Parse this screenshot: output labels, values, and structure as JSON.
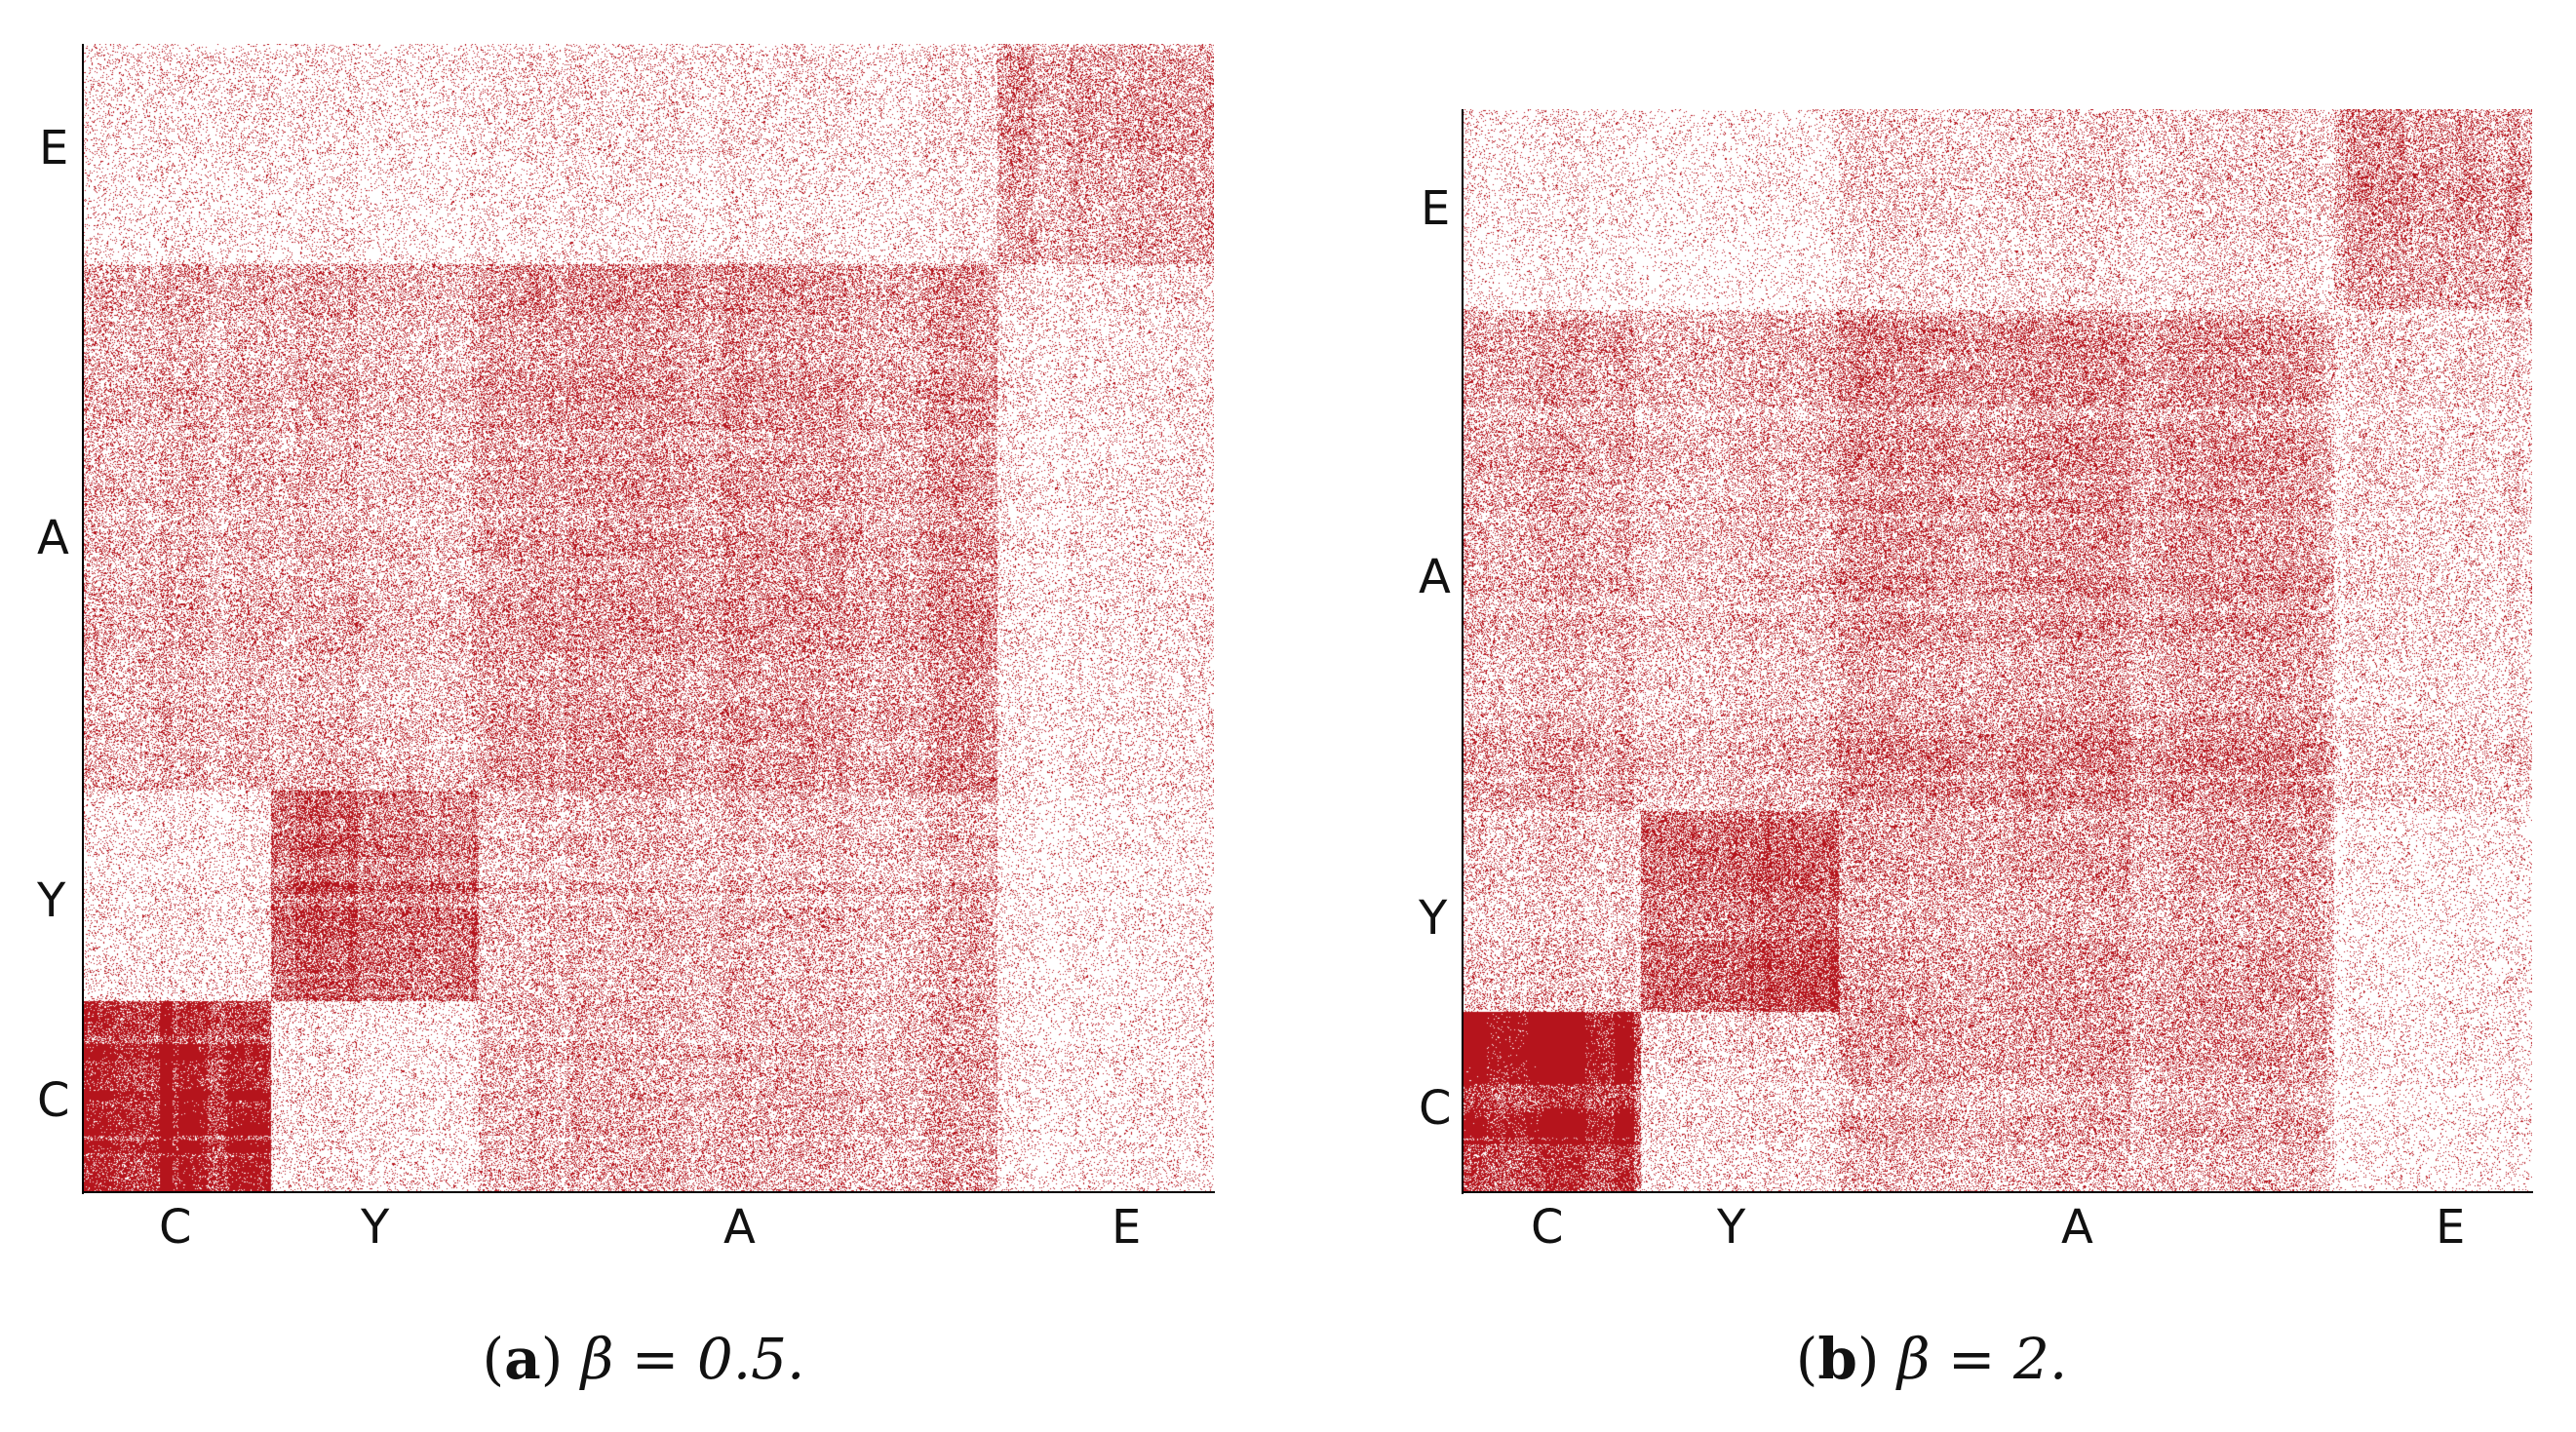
{
  "figure": {
    "colors": {
      "mark": "#b5141c",
      "background": "#ffffff",
      "axis": "#000000"
    }
  },
  "chart_data": [
    {
      "type": "heatmap",
      "panel_label": "a",
      "caption": "β = 0.5.",
      "categories": [
        "C",
        "Y",
        "A",
        "E"
      ],
      "block_sizes": [
        200,
        220,
        550,
        230
      ],
      "block_densities": [
        [
          0.95,
          0.15,
          0.32,
          0.12
        ],
        [
          0.15,
          0.72,
          0.32,
          0.12
        ],
        [
          0.32,
          0.32,
          0.42,
          0.14
        ],
        [
          0.12,
          0.12,
          0.14,
          0.38
        ]
      ],
      "x_ticks": [
        "C",
        "Y",
        "A",
        "E"
      ],
      "y_ticks": [
        "C",
        "Y",
        "A",
        "E"
      ]
    },
    {
      "type": "heatmap",
      "panel_label": "b",
      "caption": "β = 2.",
      "categories": [
        "C",
        "Y",
        "A",
        "E"
      ],
      "block_sizes": [
        180,
        200,
        500,
        200
      ],
      "block_densities": [
        [
          0.97,
          0.22,
          0.33,
          0.1
        ],
        [
          0.22,
          0.72,
          0.33,
          0.1
        ],
        [
          0.33,
          0.33,
          0.42,
          0.18
        ],
        [
          0.1,
          0.1,
          0.18,
          0.4
        ]
      ],
      "x_ticks": [
        "C",
        "Y",
        "A",
        "E"
      ],
      "y_ticks": [
        "C",
        "Y",
        "A",
        "E"
      ]
    }
  ]
}
